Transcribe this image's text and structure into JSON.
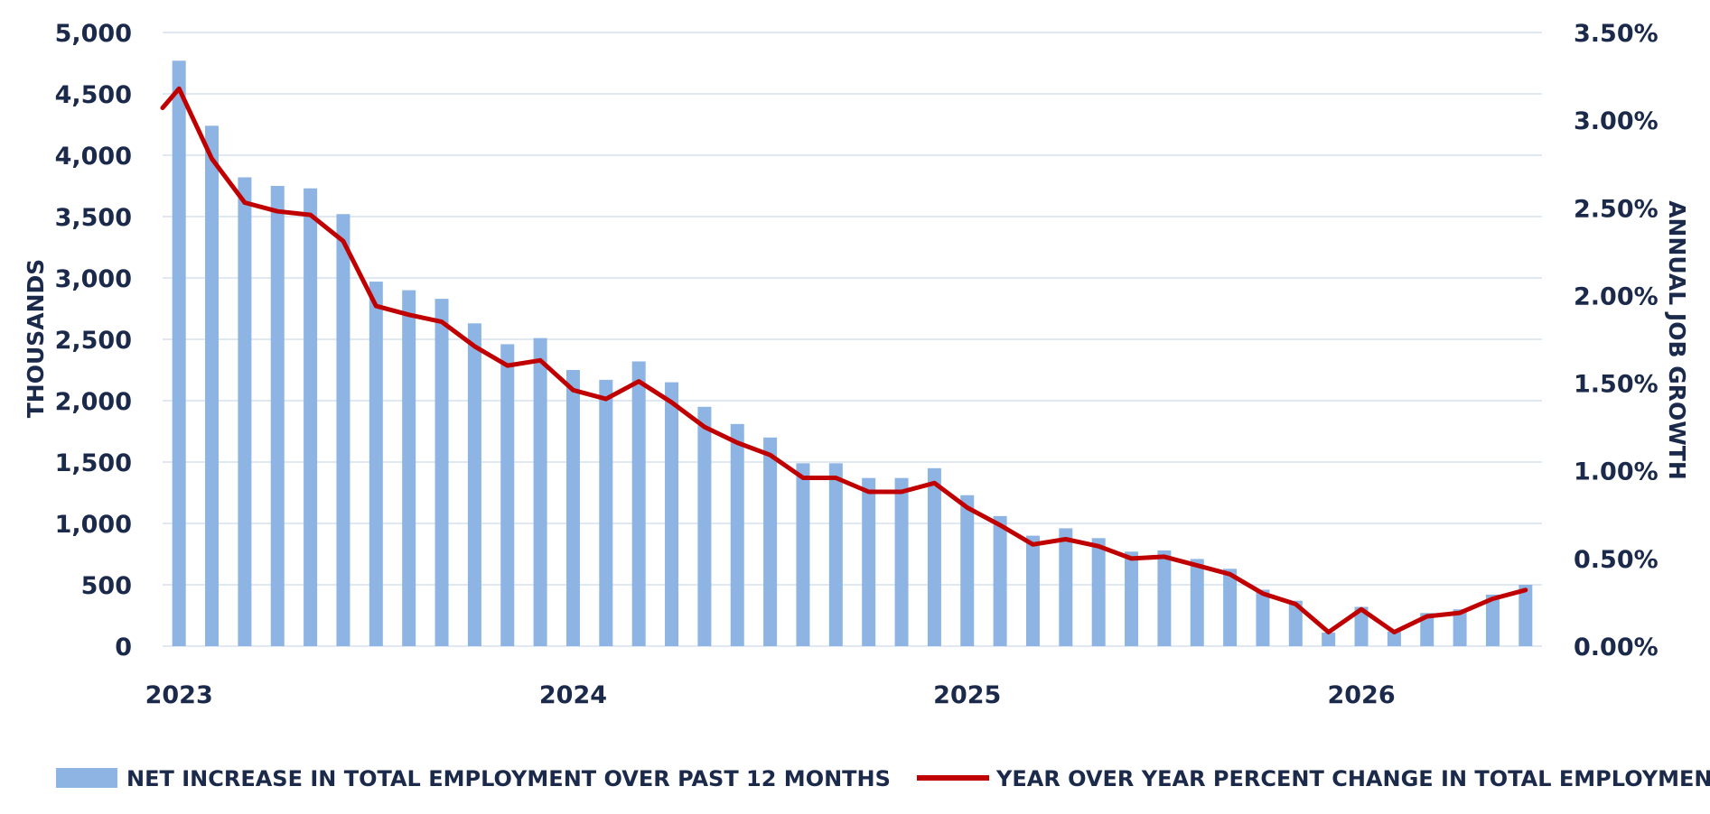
{
  "chart_data": {
    "type": "bar+line",
    "x": [
      "2023-01",
      "2023-02",
      "2023-03",
      "2023-04",
      "2023-05",
      "2023-06",
      "2023-07",
      "2023-08",
      "2023-09",
      "2023-10",
      "2023-11",
      "2023-12",
      "2024-01",
      "2024-02",
      "2024-03",
      "2024-04",
      "2024-05",
      "2024-06",
      "2024-07",
      "2024-08",
      "2024-09",
      "2024-10",
      "2024-11",
      "2024-12",
      "2025-01",
      "2025-02",
      "2025-03",
      "2025-04",
      "2025-05",
      "2025-06",
      "2025-07",
      "2025-08",
      "2025-09",
      "2025-10",
      "2025-11",
      "2025-12",
      "2026-01",
      "2026-02",
      "2026-03",
      "2026-04",
      "2026-05",
      "2026-06"
    ],
    "x_tick_labels": [
      "2023",
      "2024",
      "2025",
      "2026"
    ],
    "series": [
      {
        "name": "NET INCREASE IN TOTAL EMPLOYMENT OVER PAST 12 MONTHS",
        "type": "bar",
        "axis": "left",
        "color": "#8db4e2",
        "values": [
          4770,
          4240,
          3820,
          3750,
          3730,
          3520,
          2970,
          2900,
          2830,
          2630,
          2460,
          2510,
          2250,
          2170,
          2320,
          2150,
          1950,
          1810,
          1700,
          1490,
          1490,
          1370,
          1370,
          1450,
          1230,
          1060,
          900,
          960,
          880,
          770,
          780,
          710,
          630,
          460,
          370,
          110,
          320,
          120,
          270,
          300,
          420,
          500
        ]
      },
      {
        "name": "YEAR OVER YEAR PERCENT CHANGE IN TOTAL EMPLOYMENT",
        "type": "line",
        "axis": "right",
        "color": "#c00000",
        "values": [
          3.18,
          2.78,
          2.53,
          2.48,
          2.46,
          2.31,
          1.94,
          1.89,
          1.85,
          1.71,
          1.6,
          1.63,
          1.46,
          1.41,
          1.51,
          1.39,
          1.25,
          1.16,
          1.09,
          0.96,
          0.96,
          0.88,
          0.88,
          0.93,
          0.79,
          0.69,
          0.58,
          0.61,
          0.57,
          0.5,
          0.51,
          0.46,
          0.41,
          0.3,
          0.24,
          0.08,
          0.21,
          0.08,
          0.17,
          0.19,
          0.27,
          0.32
        ]
      }
    ],
    "y_left": {
      "label": "THOUSANDS",
      "min": 0,
      "max": 5000,
      "ticks": [
        "0",
        "500",
        "1,000",
        "1,500",
        "2,000",
        "2,500",
        "3,000",
        "3,500",
        "4,000",
        "4,500",
        "5,000"
      ]
    },
    "y_right": {
      "label": "ANNUAL JOB GROWTH",
      "min": 0,
      "max": 3.5,
      "ticks": [
        "0.00%",
        "0.50%",
        "1.00%",
        "1.50%",
        "2.00%",
        "2.50%",
        "3.00%",
        "3.50%"
      ]
    },
    "grid": true,
    "legend_position": "bottom"
  },
  "colors": {
    "text": "#1b2a4a",
    "grid": "#dfe8f3",
    "bar": "#8db4e2",
    "line": "#c00000"
  }
}
